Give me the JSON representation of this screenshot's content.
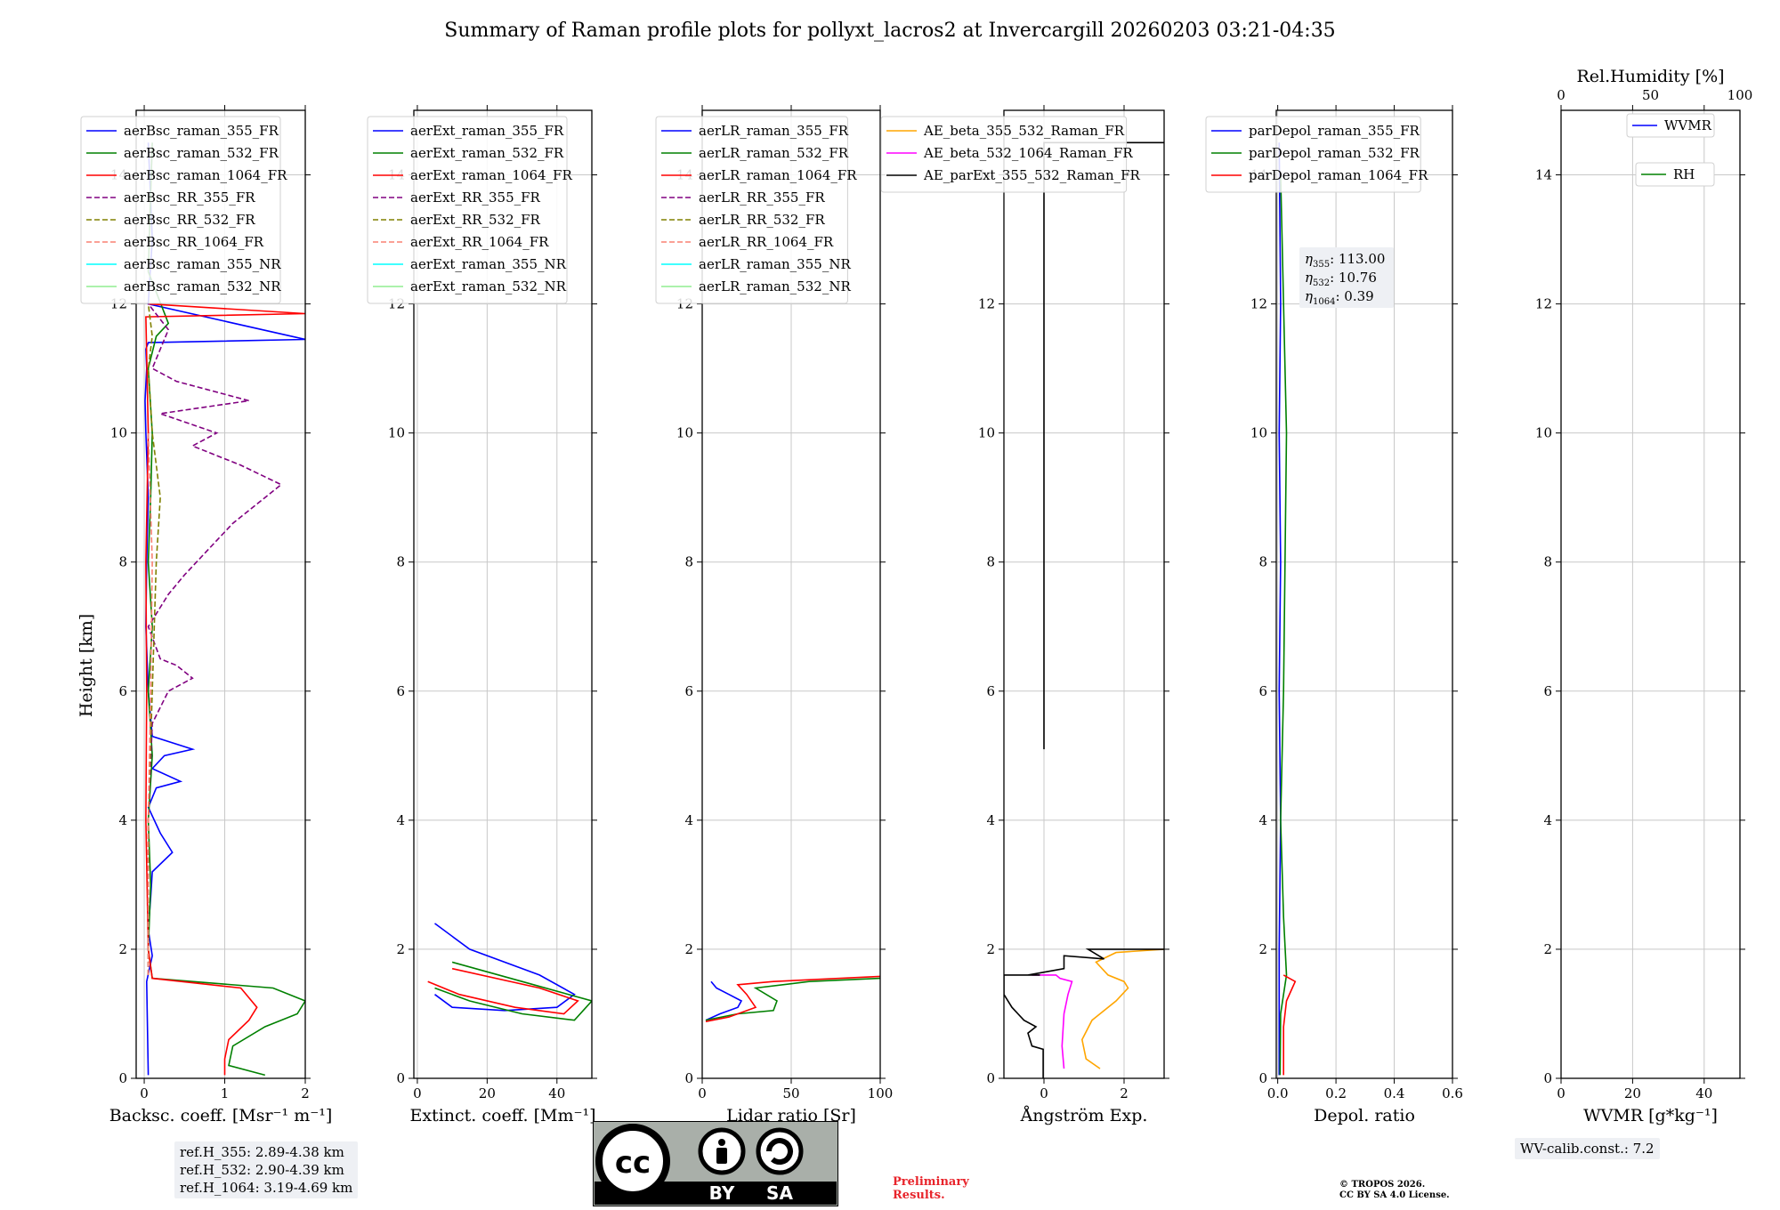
{
  "title": "Summary of Raman profile plots for pollyxt_lacros2 at Invercargill 20260203 03:21-04:35",
  "ref_heights": [
    "ref.H_355: 2.89-4.38 km",
    "ref.H_532: 2.90-4.39 km",
    "ref.H_1064: 3.19-4.69 km"
  ],
  "wv_calib": "WV-calib.const.: 7.2",
  "eta_labels": {
    "e355": "113.00",
    "e532": "10.76",
    "e1064": "0.39"
  },
  "preliminary": [
    "Preliminary",
    "Results."
  ],
  "copyright": [
    "© TROPOS 2026.",
    "CC BY SA 4.0 License."
  ],
  "cc_logo": {
    "main": "cc",
    "by": "BY",
    "sa": "SA"
  },
  "colors": {
    "blue": "#0000ff",
    "green": "#008000",
    "red": "#ff0000",
    "purple": "#800080",
    "olive": "#808000",
    "salmon": "#fa8072",
    "cyan": "#00ffff",
    "lightgreen": "#90ee90",
    "orange": "#ffa500",
    "magenta": "#ff00ff",
    "black": "#000000"
  },
  "chart_data": [
    {
      "id": "bsc",
      "type": "line",
      "xlabel": "Backsc. coeff. [Msr⁻¹ m⁻¹]",
      "ylabel": "Height [km]",
      "xlim": [
        -0.1,
        2
      ],
      "ylim": [
        0,
        15
      ],
      "xticks": [
        0,
        1,
        2
      ],
      "yticks": [
        0,
        2,
        4,
        6,
        8,
        10,
        12,
        14
      ],
      "legend": [
        {
          "name": "aerBsc_raman_355_FR",
          "color": "#0000ff",
          "dash": false
        },
        {
          "name": "aerBsc_raman_532_FR",
          "color": "#008000",
          "dash": false
        },
        {
          "name": "aerBsc_raman_1064_FR",
          "color": "#ff0000",
          "dash": false
        },
        {
          "name": "aerBsc_RR_355_FR",
          "color": "#800080",
          "dash": true
        },
        {
          "name": "aerBsc_RR_532_FR",
          "color": "#808000",
          "dash": true
        },
        {
          "name": "aerBsc_RR_1064_FR",
          "color": "#fa8072",
          "dash": true
        },
        {
          "name": "aerBsc_raman_355_NR",
          "color": "#00ffff",
          "dash": false
        },
        {
          "name": "aerBsc_raman_532_NR",
          "color": "#90ee90",
          "dash": false
        }
      ],
      "series": [
        {
          "color": "#0000ff",
          "dash": false,
          "x": [
            0.05,
            0.03,
            0.1,
            0.05,
            0.08,
            0.1,
            0.35,
            0.2,
            0.05,
            0.15,
            0.45,
            0.1,
            0.25,
            0.6,
            0.1,
            0.05,
            0.02,
            0.03,
            0.05,
            0.02,
            0.01,
            0.03,
            0.02,
            0.05,
            2,
            0.05,
            0.1,
            0.05
          ],
          "y": [
            0.05,
            1.5,
            1.9,
            2.3,
            2.8,
            3.2,
            3.5,
            3.8,
            4.2,
            4.5,
            4.6,
            4.8,
            5.0,
            5.1,
            5.3,
            6.0,
            7.0,
            8.0,
            9.0,
            10.0,
            10.5,
            11.0,
            11.3,
            11.4,
            11.45,
            12.0,
            13.0,
            14.5
          ]
        },
        {
          "color": "#008000",
          "dash": false,
          "x": [
            1.5,
            1.05,
            1.1,
            1.5,
            1.9,
            2.0,
            1.6,
            0.1,
            0.05,
            0.08,
            0.05,
            0.1,
            0.05,
            0.1,
            0.05,
            0.08,
            0.1,
            0.05,
            0.15,
            0.3,
            0.05,
            0.1
          ],
          "y": [
            0.05,
            0.2,
            0.5,
            0.8,
            1.0,
            1.2,
            1.4,
            1.55,
            2.0,
            3.0,
            4.0,
            5.0,
            6.0,
            7.0,
            8.0,
            9.0,
            10.0,
            11.0,
            11.5,
            11.7,
            12.5,
            14.5
          ]
        },
        {
          "color": "#ff0000",
          "dash": false,
          "x": [
            1.0,
            1.0,
            1.05,
            1.3,
            1.4,
            1.2,
            0.1,
            0.05,
            0.02,
            0.03,
            0.02,
            0.05,
            0.02,
            2.0,
            0.05
          ],
          "y": [
            0.05,
            0.3,
            0.6,
            0.9,
            1.1,
            1.4,
            1.55,
            2.0,
            4.0,
            6.0,
            8.0,
            10.0,
            11.8,
            11.85,
            12.0
          ]
        },
        {
          "color": "#800080",
          "dash": true,
          "x": [
            0.05,
            0.05,
            0.1,
            0.3,
            0.6,
            0.4,
            0.2,
            0.05,
            0.3,
            0.5,
            0.8,
            1.1,
            1.5,
            1.7,
            1.2,
            0.6,
            0.9,
            0.2,
            1.3,
            0.4,
            0.1,
            0.3,
            0.05
          ],
          "y": [
            1.6,
            4.0,
            5.5,
            6.0,
            6.2,
            6.4,
            6.5,
            7.0,
            7.5,
            7.8,
            8.2,
            8.6,
            9.0,
            9.2,
            9.5,
            9.8,
            10.0,
            10.3,
            10.5,
            10.8,
            11.0,
            11.6,
            12.0
          ]
        },
        {
          "color": "#808000",
          "dash": true,
          "x": [
            0.05,
            0.05,
            0.1,
            0.15,
            0.2,
            0.1,
            0.05,
            0.1,
            0.05
          ],
          "y": [
            1.6,
            4.0,
            6.0,
            8.0,
            9.0,
            10.0,
            11.0,
            11.5,
            12.0
          ]
        },
        {
          "color": "#fa8072",
          "dash": true,
          "x": [
            0.05,
            0.05,
            0.08,
            0.1,
            0.05
          ],
          "y": [
            1.6,
            4.0,
            6.0,
            8.0,
            10.0
          ]
        }
      ]
    },
    {
      "id": "ext",
      "type": "line",
      "xlabel": "Extinct. coeff. [Mm⁻¹]",
      "xlim": [
        -1,
        50
      ],
      "ylim": [
        0,
        15
      ],
      "xticks": [
        0,
        20,
        40
      ],
      "yticks": [
        0,
        2,
        4,
        6,
        8,
        10,
        12,
        14
      ],
      "legend": [
        {
          "name": "aerExt_raman_355_FR",
          "color": "#0000ff",
          "dash": false
        },
        {
          "name": "aerExt_raman_532_FR",
          "color": "#008000",
          "dash": false
        },
        {
          "name": "aerExt_raman_1064_FR",
          "color": "#ff0000",
          "dash": false
        },
        {
          "name": "aerExt_RR_355_FR",
          "color": "#800080",
          "dash": true
        },
        {
          "name": "aerExt_RR_532_FR",
          "color": "#808000",
          "dash": true
        },
        {
          "name": "aerExt_RR_1064_FR",
          "color": "#fa8072",
          "dash": true
        },
        {
          "name": "aerExt_raman_355_NR",
          "color": "#00ffff",
          "dash": false
        },
        {
          "name": "aerExt_raman_532_NR",
          "color": "#90ee90",
          "dash": false
        }
      ],
      "series": [
        {
          "color": "#0000ff",
          "dash": false,
          "x": [
            5,
            10,
            25,
            40,
            45,
            35,
            15,
            5
          ],
          "y": [
            1.3,
            1.1,
            1.05,
            1.1,
            1.3,
            1.6,
            2.0,
            2.4
          ]
        },
        {
          "color": "#008000",
          "dash": false,
          "x": [
            5,
            15,
            30,
            45,
            50,
            30,
            10
          ],
          "y": [
            1.4,
            1.2,
            1.0,
            0.9,
            1.2,
            1.5,
            1.8
          ]
        },
        {
          "color": "#ff0000",
          "dash": false,
          "x": [
            3,
            12,
            28,
            42,
            46,
            35,
            10
          ],
          "y": [
            1.5,
            1.3,
            1.1,
            1.0,
            1.2,
            1.4,
            1.7
          ]
        }
      ]
    },
    {
      "id": "lr",
      "type": "line",
      "xlabel": "Lidar ratio [Sr]",
      "xlim": [
        0,
        100
      ],
      "ylim": [
        0,
        15
      ],
      "xticks": [
        0,
        50,
        100
      ],
      "yticks": [
        0,
        2,
        4,
        6,
        8,
        10,
        12,
        14
      ],
      "legend": [
        {
          "name": "aerLR_raman_355_FR",
          "color": "#0000ff",
          "dash": false
        },
        {
          "name": "aerLR_raman_532_FR",
          "color": "#008000",
          "dash": false
        },
        {
          "name": "aerLR_raman_1064_FR",
          "color": "#ff0000",
          "dash": false
        },
        {
          "name": "aerLR_RR_355_FR",
          "color": "#800080",
          "dash": true
        },
        {
          "name": "aerLR_RR_532_FR",
          "color": "#808000",
          "dash": true
        },
        {
          "name": "aerLR_RR_1064_FR",
          "color": "#fa8072",
          "dash": true
        },
        {
          "name": "aerLR_raman_355_NR",
          "color": "#00ffff",
          "dash": false
        },
        {
          "name": "aerLR_raman_532_NR",
          "color": "#90ee90",
          "dash": false
        }
      ],
      "series": [
        {
          "color": "#0000ff",
          "dash": false,
          "x": [
            2,
            10,
            20,
            22,
            15,
            8,
            5
          ],
          "y": [
            0.9,
            1.0,
            1.1,
            1.2,
            1.3,
            1.4,
            1.5
          ]
        },
        {
          "color": "#008000",
          "dash": false,
          "x": [
            2,
            20,
            40,
            42,
            30,
            60,
            100
          ],
          "y": [
            0.9,
            1.0,
            1.05,
            1.2,
            1.4,
            1.5,
            1.55
          ]
        },
        {
          "color": "#ff0000",
          "dash": false,
          "x": [
            2,
            15,
            30,
            25,
            20,
            40,
            100
          ],
          "y": [
            0.88,
            0.95,
            1.1,
            1.3,
            1.45,
            1.5,
            1.58
          ]
        }
      ]
    },
    {
      "id": "ae",
      "type": "line",
      "xlabel": "Ångström Exp.",
      "xlim": [
        -1,
        3
      ],
      "ylim": [
        0,
        15
      ],
      "xticks": [
        0,
        2
      ],
      "yticks": [
        0,
        2,
        4,
        6,
        8,
        10,
        12,
        14
      ],
      "legend": [
        {
          "name": "AE_beta_355_532_Raman_FR",
          "color": "#ffa500",
          "dash": false
        },
        {
          "name": "AE_beta_532_1064_Raman_FR",
          "color": "#ff00ff",
          "dash": false
        },
        {
          "name": "AE_parExt_355_532_Raman_FR",
          "color": "#000000",
          "dash": false
        }
      ],
      "series": [
        {
          "color": "#ffa500",
          "dash": false,
          "x": [
            1.4,
            1.05,
            0.95,
            1.2,
            1.8,
            2.1,
            2.0,
            1.6,
            1.3,
            1.8,
            3.0
          ],
          "y": [
            0.15,
            0.3,
            0.6,
            0.9,
            1.2,
            1.4,
            1.5,
            1.6,
            1.8,
            1.95,
            2.0
          ]
        },
        {
          "color": "#ff00ff",
          "dash": false,
          "x": [
            0.5,
            0.45,
            0.5,
            0.6,
            0.7,
            0.4,
            0.3,
            -0.3
          ],
          "y": [
            0.15,
            0.5,
            1.0,
            1.3,
            1.5,
            1.55,
            1.6,
            1.6
          ]
        },
        {
          "color": "#000000",
          "dash": false,
          "x": [
            -0.02,
            -0.02,
            -0.3,
            -0.4,
            -0.2,
            -0.5,
            -0.8,
            -1.0,
            -1.0,
            -0.1,
            -0.4,
            0.5,
            0.5,
            1.5,
            1.1,
            2.0,
            3.0
          ],
          "y": [
            0.0,
            0.45,
            0.5,
            0.7,
            0.8,
            0.9,
            1.1,
            1.3,
            1.6,
            1.6,
            1.6,
            1.7,
            1.9,
            1.85,
            2.0,
            2.0,
            2.0
          ]
        },
        {
          "color": "#000000",
          "dash": false,
          "x": [
            0.0,
            0.0,
            3.0
          ],
          "y": [
            5.1,
            14.5,
            14.5
          ]
        }
      ]
    },
    {
      "id": "depol",
      "type": "line",
      "xlabel": "Depol. ratio",
      "xlim": [
        -0.005,
        0.6
      ],
      "ylim": [
        0,
        15
      ],
      "xticks": [
        0.0,
        0.2,
        0.4,
        0.6
      ],
      "yticks": [
        0,
        2,
        4,
        6,
        8,
        10,
        12,
        14
      ],
      "legend": [
        {
          "name": "parDepol_raman_355_FR",
          "color": "#0000ff",
          "dash": false
        },
        {
          "name": "parDepol_raman_532_FR",
          "color": "#008000",
          "dash": false
        },
        {
          "name": "parDepol_raman_1064_FR",
          "color": "#ff0000",
          "dash": false
        }
      ],
      "series": [
        {
          "color": "#0000ff",
          "dash": false,
          "x": [
            0.005,
            0.005,
            0.01,
            0.005,
            0.01,
            0.005,
            0.01,
            0.005
          ],
          "y": [
            0.05,
            2.0,
            4.0,
            6.0,
            8.0,
            10.0,
            12.0,
            14.5
          ]
        },
        {
          "color": "#008000",
          "dash": false,
          "x": [
            0.008,
            0.01,
            0.03,
            0.02,
            0.01,
            0.02,
            0.03,
            0.01
          ],
          "y": [
            0.05,
            1.0,
            1.6,
            2.5,
            4.0,
            6.0,
            10.0,
            14.0
          ]
        },
        {
          "color": "#ff0000",
          "dash": false,
          "x": [
            0.02,
            0.02,
            0.03,
            0.05,
            0.06,
            0.04,
            0.02
          ],
          "y": [
            0.05,
            0.8,
            1.2,
            1.4,
            1.5,
            1.55,
            1.6
          ]
        }
      ]
    },
    {
      "id": "wv",
      "type": "line",
      "xlabel": "WVMR [g*kg⁻¹]",
      "x2label": "Rel.Humidity [%]",
      "xlim": [
        0,
        50
      ],
      "x2lim": [
        0,
        100
      ],
      "ylim": [
        0,
        15
      ],
      "xticks": [
        0,
        20,
        40
      ],
      "x2ticks": [
        0,
        50,
        100
      ],
      "yticks": [
        0,
        2,
        4,
        6,
        8,
        10,
        12,
        14
      ],
      "legend": [
        {
          "name": "WVMR",
          "color": "#0000ff",
          "dash": false
        },
        {
          "name": "RH",
          "color": "#008000",
          "dash": false
        }
      ],
      "series": []
    }
  ]
}
